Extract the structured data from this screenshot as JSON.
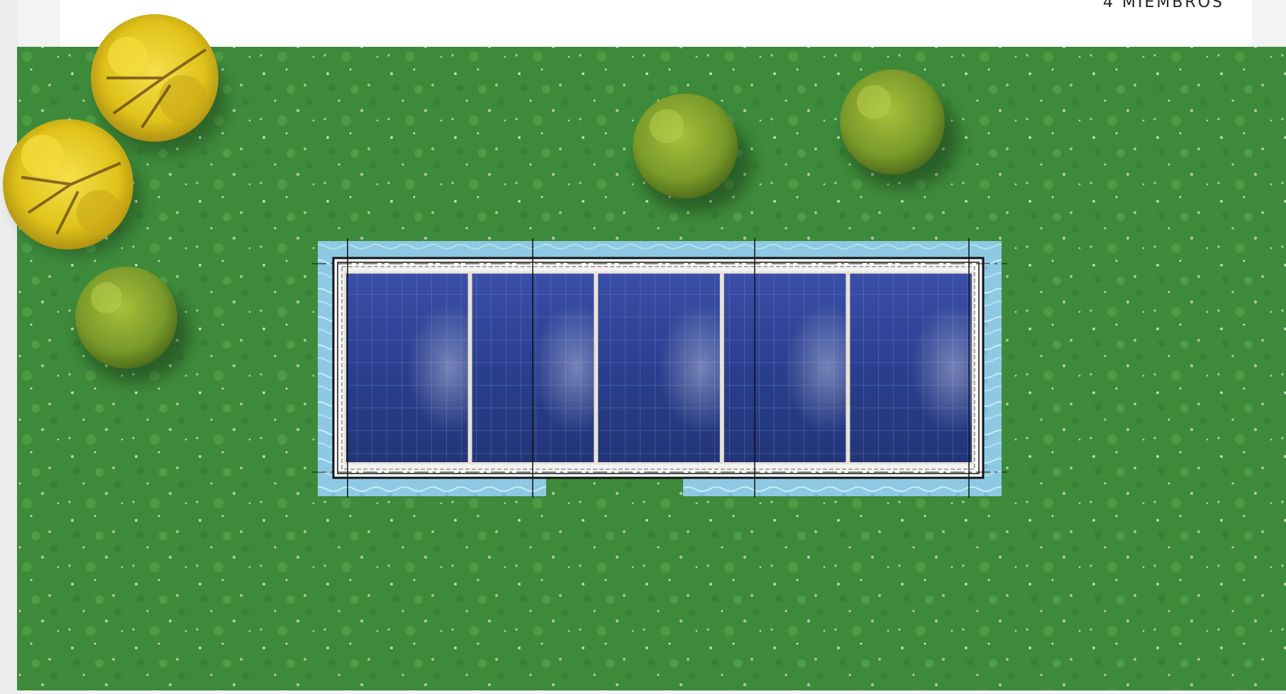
{
  "header": {
    "members_label": "4 MIEMBROS"
  },
  "plan": {
    "panel_count": 5,
    "colors": {
      "grass": "#3d8a3a",
      "grass_light": "#6fbf5a",
      "grass_dark": "#2a6a2c",
      "pool_water": "#8ec9e3",
      "panel_blue": "#2a3f8f",
      "panel_frame": "#e8e2d4",
      "tree_yellow": "#e0c21a",
      "bush_green": "#7a9a2a"
    }
  }
}
